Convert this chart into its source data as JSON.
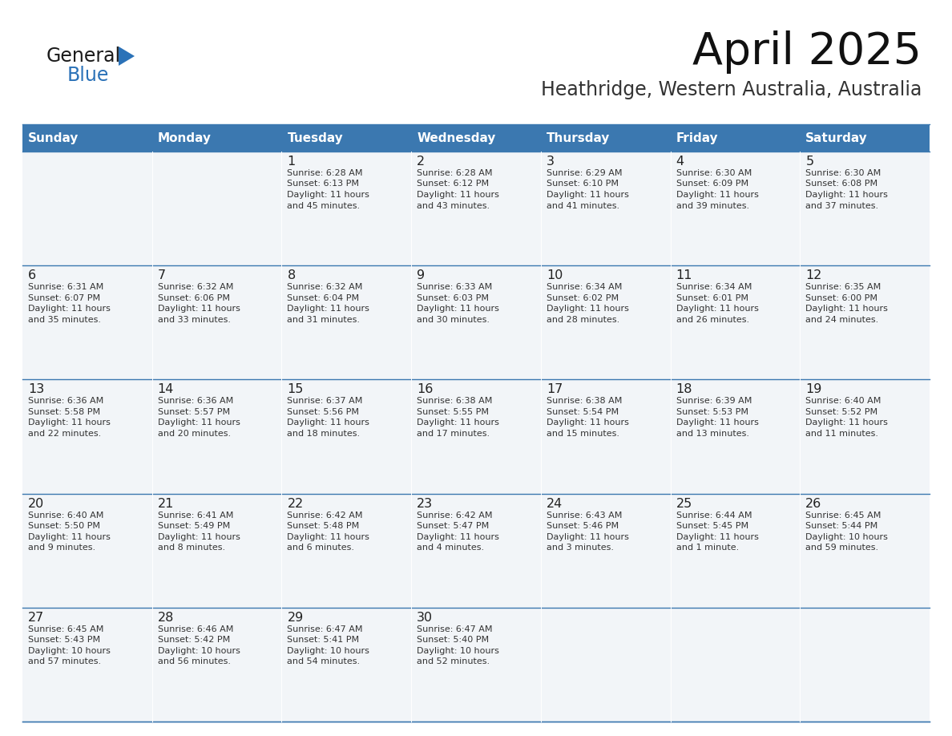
{
  "title": "April 2025",
  "subtitle": "Heathridge, Western Australia, Australia",
  "header_bg": "#3b78b0",
  "header_text_color": "#ffffff",
  "day_names": [
    "Sunday",
    "Monday",
    "Tuesday",
    "Wednesday",
    "Thursday",
    "Friday",
    "Saturday"
  ],
  "row_bg": "#f2f5f8",
  "cell_border_color": "#3b78b0",
  "date_color": "#222222",
  "info_color": "#333333",
  "fig_bg": "#ffffff",
  "weeks": [
    [
      {
        "day": null,
        "info": null
      },
      {
        "day": null,
        "info": null
      },
      {
        "day": "1",
        "info": "Sunrise: 6:28 AM\nSunset: 6:13 PM\nDaylight: 11 hours\nand 45 minutes."
      },
      {
        "day": "2",
        "info": "Sunrise: 6:28 AM\nSunset: 6:12 PM\nDaylight: 11 hours\nand 43 minutes."
      },
      {
        "day": "3",
        "info": "Sunrise: 6:29 AM\nSunset: 6:10 PM\nDaylight: 11 hours\nand 41 minutes."
      },
      {
        "day": "4",
        "info": "Sunrise: 6:30 AM\nSunset: 6:09 PM\nDaylight: 11 hours\nand 39 minutes."
      },
      {
        "day": "5",
        "info": "Sunrise: 6:30 AM\nSunset: 6:08 PM\nDaylight: 11 hours\nand 37 minutes."
      }
    ],
    [
      {
        "day": "6",
        "info": "Sunrise: 6:31 AM\nSunset: 6:07 PM\nDaylight: 11 hours\nand 35 minutes."
      },
      {
        "day": "7",
        "info": "Sunrise: 6:32 AM\nSunset: 6:06 PM\nDaylight: 11 hours\nand 33 minutes."
      },
      {
        "day": "8",
        "info": "Sunrise: 6:32 AM\nSunset: 6:04 PM\nDaylight: 11 hours\nand 31 minutes."
      },
      {
        "day": "9",
        "info": "Sunrise: 6:33 AM\nSunset: 6:03 PM\nDaylight: 11 hours\nand 30 minutes."
      },
      {
        "day": "10",
        "info": "Sunrise: 6:34 AM\nSunset: 6:02 PM\nDaylight: 11 hours\nand 28 minutes."
      },
      {
        "day": "11",
        "info": "Sunrise: 6:34 AM\nSunset: 6:01 PM\nDaylight: 11 hours\nand 26 minutes."
      },
      {
        "day": "12",
        "info": "Sunrise: 6:35 AM\nSunset: 6:00 PM\nDaylight: 11 hours\nand 24 minutes."
      }
    ],
    [
      {
        "day": "13",
        "info": "Sunrise: 6:36 AM\nSunset: 5:58 PM\nDaylight: 11 hours\nand 22 minutes."
      },
      {
        "day": "14",
        "info": "Sunrise: 6:36 AM\nSunset: 5:57 PM\nDaylight: 11 hours\nand 20 minutes."
      },
      {
        "day": "15",
        "info": "Sunrise: 6:37 AM\nSunset: 5:56 PM\nDaylight: 11 hours\nand 18 minutes."
      },
      {
        "day": "16",
        "info": "Sunrise: 6:38 AM\nSunset: 5:55 PM\nDaylight: 11 hours\nand 17 minutes."
      },
      {
        "day": "17",
        "info": "Sunrise: 6:38 AM\nSunset: 5:54 PM\nDaylight: 11 hours\nand 15 minutes."
      },
      {
        "day": "18",
        "info": "Sunrise: 6:39 AM\nSunset: 5:53 PM\nDaylight: 11 hours\nand 13 minutes."
      },
      {
        "day": "19",
        "info": "Sunrise: 6:40 AM\nSunset: 5:52 PM\nDaylight: 11 hours\nand 11 minutes."
      }
    ],
    [
      {
        "day": "20",
        "info": "Sunrise: 6:40 AM\nSunset: 5:50 PM\nDaylight: 11 hours\nand 9 minutes."
      },
      {
        "day": "21",
        "info": "Sunrise: 6:41 AM\nSunset: 5:49 PM\nDaylight: 11 hours\nand 8 minutes."
      },
      {
        "day": "22",
        "info": "Sunrise: 6:42 AM\nSunset: 5:48 PM\nDaylight: 11 hours\nand 6 minutes."
      },
      {
        "day": "23",
        "info": "Sunrise: 6:42 AM\nSunset: 5:47 PM\nDaylight: 11 hours\nand 4 minutes."
      },
      {
        "day": "24",
        "info": "Sunrise: 6:43 AM\nSunset: 5:46 PM\nDaylight: 11 hours\nand 3 minutes."
      },
      {
        "day": "25",
        "info": "Sunrise: 6:44 AM\nSunset: 5:45 PM\nDaylight: 11 hours\nand 1 minute."
      },
      {
        "day": "26",
        "info": "Sunrise: 6:45 AM\nSunset: 5:44 PM\nDaylight: 10 hours\nand 59 minutes."
      }
    ],
    [
      {
        "day": "27",
        "info": "Sunrise: 6:45 AM\nSunset: 5:43 PM\nDaylight: 10 hours\nand 57 minutes."
      },
      {
        "day": "28",
        "info": "Sunrise: 6:46 AM\nSunset: 5:42 PM\nDaylight: 10 hours\nand 56 minutes."
      },
      {
        "day": "29",
        "info": "Sunrise: 6:47 AM\nSunset: 5:41 PM\nDaylight: 10 hours\nand 54 minutes."
      },
      {
        "day": "30",
        "info": "Sunrise: 6:47 AM\nSunset: 5:40 PM\nDaylight: 10 hours\nand 52 minutes."
      },
      {
        "day": null,
        "info": null
      },
      {
        "day": null,
        "info": null
      },
      {
        "day": null,
        "info": null
      }
    ]
  ],
  "logo_text1": "General",
  "logo_text2": "Blue",
  "logo_color1": "#1a1a1a",
  "logo_color2": "#2b72b8"
}
